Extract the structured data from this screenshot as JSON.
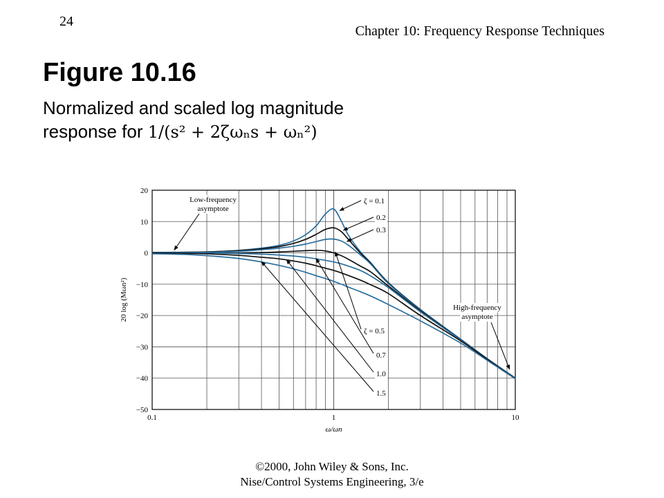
{
  "header": {
    "slide_number": "24",
    "chapter": "Chapter 10: Frequency Response Techniques"
  },
  "figure": {
    "title": "Figure 10.16",
    "caption_line1": "Normalized and scaled log magnitude",
    "caption_line2_prefix": "response for",
    "formula": "1/(s² + 2ζωₙs + ωₙ²)"
  },
  "footer": {
    "line1": "©2000, John Wiley & Sons, Inc.",
    "line2": "Nise/Control Systems Engineering, 3/e"
  },
  "colors": {
    "blue_series": "#2a6f9e",
    "black_series": "#111111",
    "grid": "#555555"
  },
  "chart_data": {
    "type": "line",
    "title": "",
    "xlabel": "ω/ωn",
    "ylabel": "20 log (Mωn²)",
    "x_scale": "log",
    "xlim": [
      0.1,
      10
    ],
    "ylim": [
      -50,
      20
    ],
    "x_ticks": [
      "0.1",
      "1",
      "10"
    ],
    "y_ticks": [
      "20",
      "10",
      "0",
      "−10",
      "−20",
      "−30",
      "−40",
      "−50"
    ],
    "grid": true,
    "x": [
      0.1,
      0.15,
      0.2,
      0.3,
      0.4,
      0.5,
      0.6,
      0.7,
      0.8,
      0.9,
      1.0,
      1.1,
      1.2,
      1.4,
      1.6,
      2.0,
      3.0,
      5.0,
      7.0,
      10.0
    ],
    "series": [
      {
        "name": "ζ = 0.1",
        "color": "#2a6f9e",
        "values": [
          0.1,
          0.2,
          0.3,
          0.8,
          1.5,
          2.4,
          3.8,
          5.8,
          8.6,
          12.4,
          14.0,
          10.2,
          5.8,
          0.4,
          -3.2,
          -9.5,
          -18.1,
          -27.6,
          -33.8,
          -40.0
        ]
      },
      {
        "name": "0.2",
        "color": "#111111",
        "values": [
          0.1,
          0.2,
          0.3,
          0.7,
          1.3,
          2.0,
          3.0,
          4.3,
          5.9,
          7.5,
          8.0,
          6.8,
          4.4,
          0.0,
          -3.3,
          -9.6,
          -18.1,
          -27.6,
          -33.8,
          -40.0
        ]
      },
      {
        "name": "0.3",
        "color": "#2a6f9e",
        "values": [
          0.1,
          0.1,
          0.2,
          0.5,
          1.0,
          1.5,
          2.1,
          2.8,
          3.6,
          4.3,
          4.4,
          3.8,
          2.5,
          -0.6,
          -3.6,
          -9.8,
          -18.2,
          -27.6,
          -33.8,
          -40.0
        ]
      },
      {
        "name": "ζ = 0.5",
        "color": "#111111",
        "values": [
          0.0,
          0.0,
          0.0,
          0.0,
          0.1,
          0.3,
          0.5,
          0.7,
          0.8,
          0.6,
          0.0,
          -0.9,
          -2.0,
          -4.2,
          -6.1,
          -10.6,
          -18.5,
          -27.7,
          -33.8,
          -40.0
        ]
      },
      {
        "name": "0.7",
        "color": "#2a6f9e",
        "values": [
          0.0,
          0.0,
          0.0,
          -0.2,
          -0.4,
          -0.7,
          -1.0,
          -1.4,
          -1.9,
          -2.4,
          -2.9,
          -3.5,
          -4.2,
          -5.6,
          -7.4,
          -11.1,
          -18.8,
          -27.8,
          -33.9,
          -40.0
        ]
      },
      {
        "name": "1.0",
        "color": "#111111",
        "values": [
          -0.1,
          -0.2,
          -0.3,
          -0.8,
          -1.4,
          -1.9,
          -2.6,
          -3.3,
          -4.1,
          -4.9,
          -5.6,
          -6.4,
          -7.2,
          -8.7,
          -10.2,
          -13.0,
          -20.0,
          -28.1,
          -34.0,
          -40.1
        ]
      },
      {
        "name": "1.5",
        "color": "#2a6f9e",
        "values": [
          -0.3,
          -0.5,
          -0.9,
          -1.8,
          -2.9,
          -4.0,
          -5.1,
          -6.2,
          -7.3,
          -8.2,
          -9.1,
          -10.0,
          -10.9,
          -12.4,
          -13.8,
          -16.5,
          -21.7,
          -28.8,
          -34.3,
          -40.2
        ]
      }
    ],
    "annotations": [
      {
        "label": "Low-frequency asymptote",
        "target_x": 0.13,
        "target_y": 0
      },
      {
        "label": "High-frequency asymptote",
        "target_x": 9.3,
        "target_y": -38.5
      }
    ]
  }
}
